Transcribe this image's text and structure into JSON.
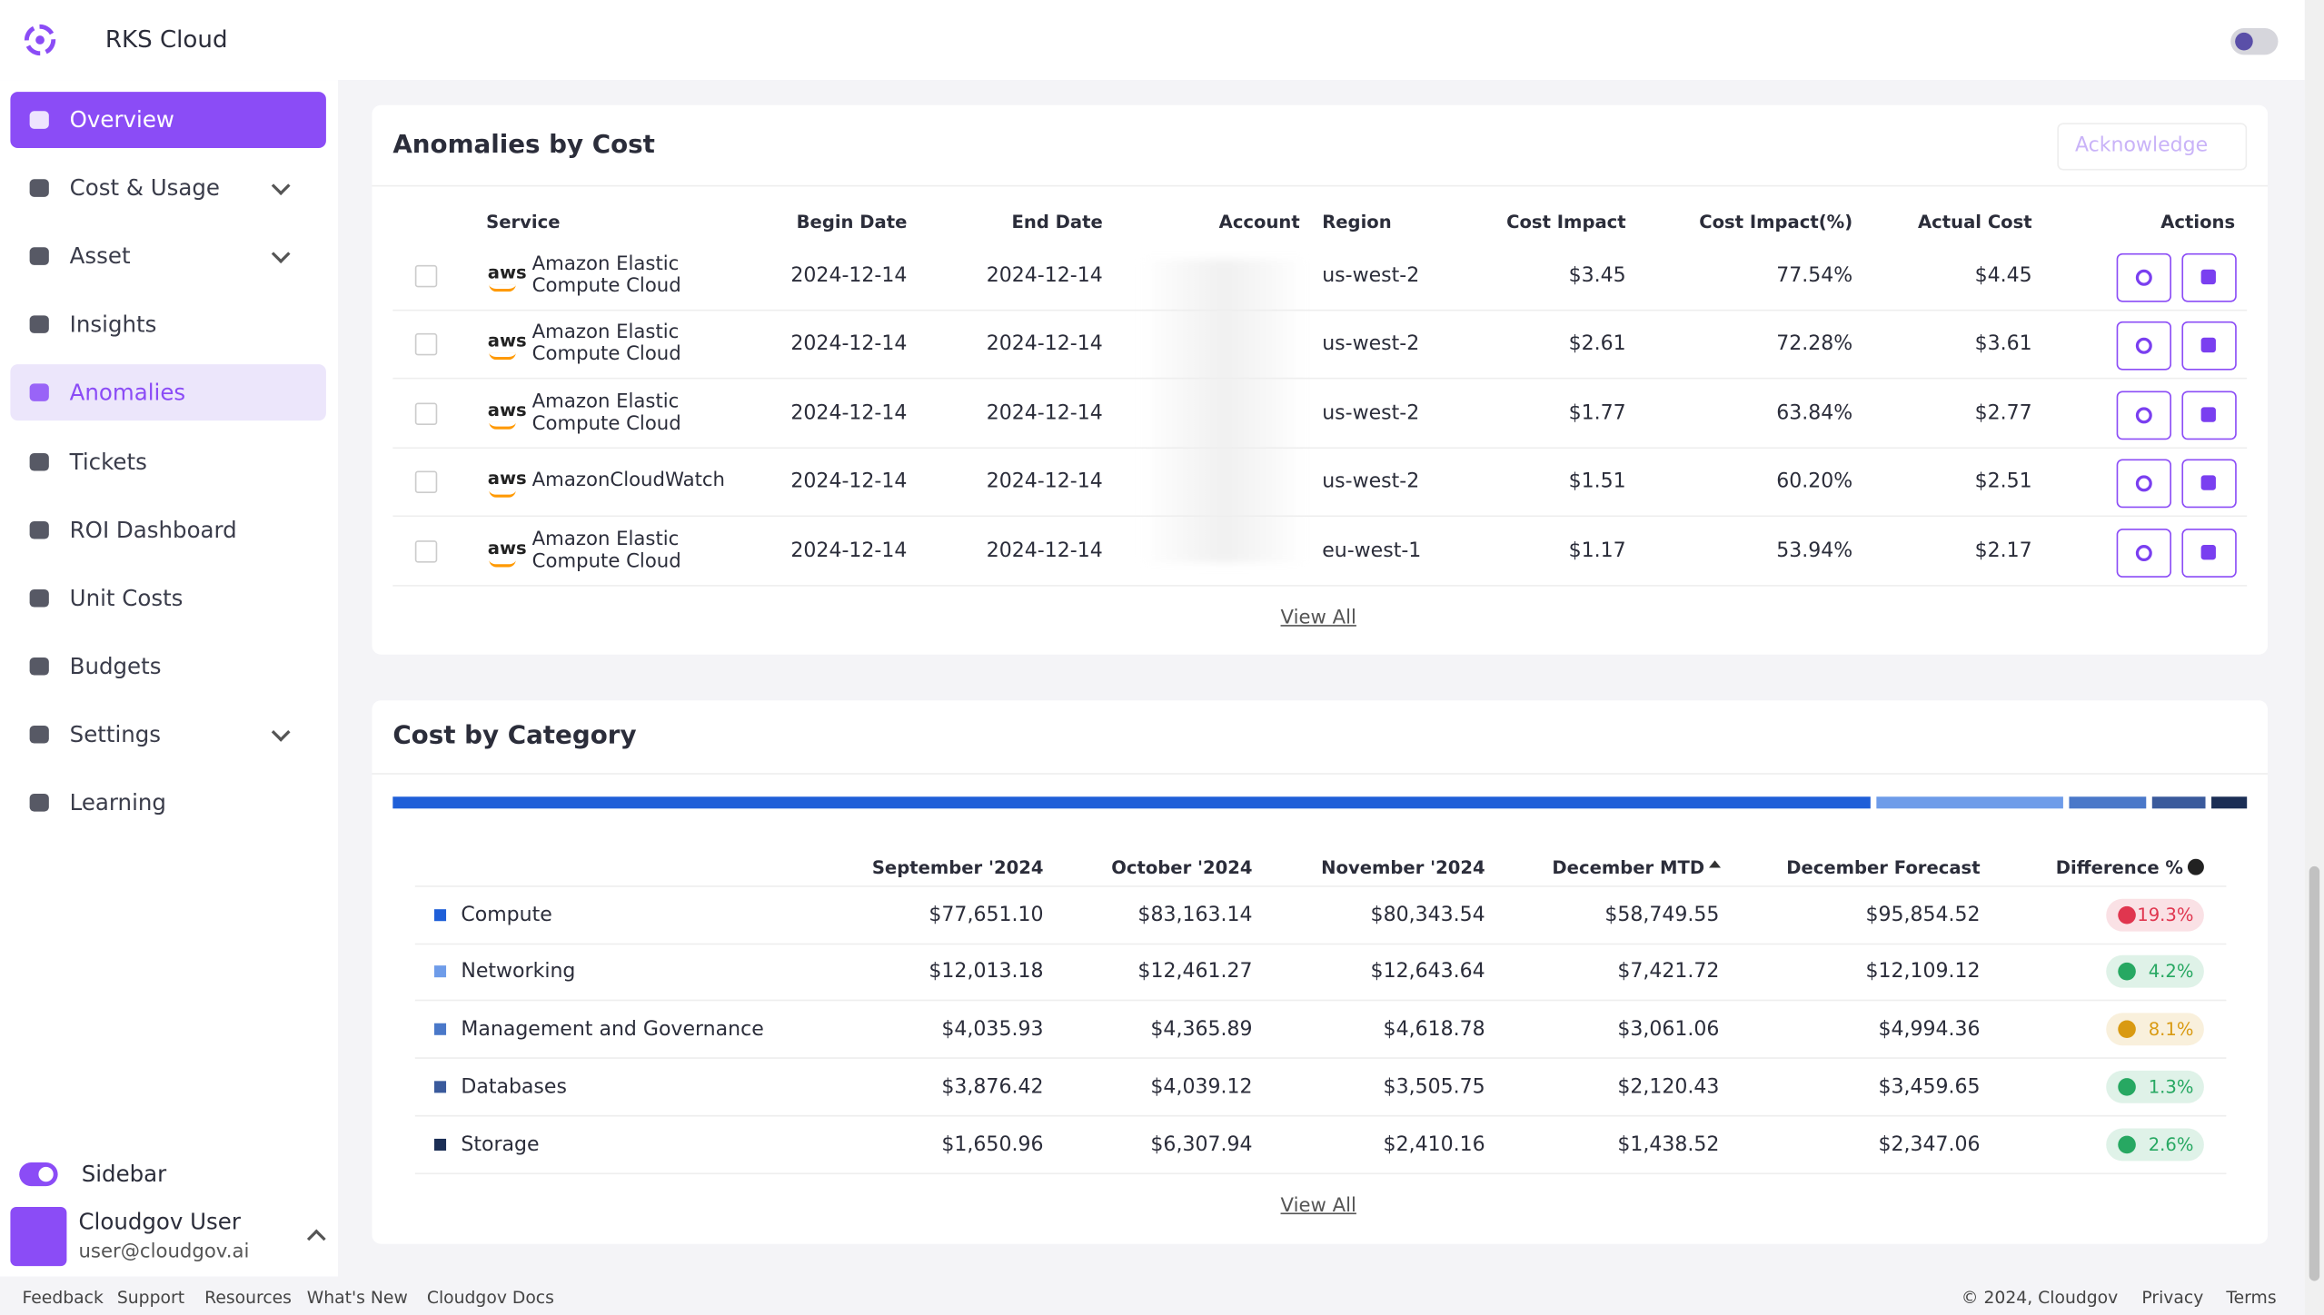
{
  "header": {
    "brand": "RKS Cloud"
  },
  "sidebar": {
    "items": [
      {
        "label": "Overview",
        "active": true
      },
      {
        "label": "Cost & Usage",
        "has_submenu": true
      },
      {
        "label": "Asset",
        "has_submenu": true
      },
      {
        "label": "Insights"
      },
      {
        "label": "Anomalies",
        "highlighted": true
      },
      {
        "label": "Tickets"
      },
      {
        "label": "ROI Dashboard"
      },
      {
        "label": "Unit Costs"
      },
      {
        "label": "Budgets"
      },
      {
        "label": "Settings",
        "has_submenu": true
      },
      {
        "label": "Learning"
      }
    ],
    "toggle_label": "Sidebar",
    "user": {
      "name": "Cloudgov User",
      "email": "user@cloudgov.ai"
    }
  },
  "anomalies": {
    "title": "Anomalies by Cost",
    "button": "Acknowledge",
    "logo_text": "aws",
    "columns": [
      "Service",
      "Begin Date",
      "End Date",
      "Account",
      "Region",
      "Cost Impact",
      "Cost Impact(%)",
      "Actual Cost",
      "Actions"
    ],
    "rows": [
      [
        "Amazon Elastic Compute Cloud",
        "2024-12-14",
        "2024-12-14",
        "us-west-2",
        "$3.45",
        "77.54%",
        "$4.45"
      ],
      [
        "Amazon Elastic Compute Cloud",
        "2024-12-14",
        "2024-12-14",
        "us-west-2",
        "$2.61",
        "72.28%",
        "$3.61"
      ],
      [
        "Amazon Elastic Compute Cloud",
        "2024-12-14",
        "2024-12-14",
        "us-west-2",
        "$1.77",
        "63.84%",
        "$2.77"
      ],
      [
        "AmazonCloudWatch",
        "2024-12-14",
        "2024-12-14",
        "us-west-2",
        "$1.51",
        "60.20%",
        "$2.51"
      ],
      [
        "Amazon Elastic Compute Cloud",
        "2024-12-14",
        "2024-12-14",
        "eu-west-1",
        "$1.17",
        "53.94%",
        "$2.17"
      ]
    ],
    "view_all": "View All"
  },
  "category": {
    "title": "Cost by Category",
    "columns": [
      "September '2024",
      "October '2024",
      "November '2024",
      "December MTD",
      "December Forecast",
      "Difference %"
    ],
    "rows": [
      {
        "name": "Compute",
        "color": "#1f5fd8",
        "values": [
          "$77,651.10",
          "$83,163.14",
          "$80,343.54",
          "$58,749.55",
          "$95,854.52"
        ],
        "difference": "19.3%",
        "badge_color": "#e0364f"
      },
      {
        "name": "Networking",
        "color": "#6e9ce9",
        "values": [
          "$12,013.18",
          "$12,461.27",
          "$12,643.64",
          "$7,421.72",
          "$12,109.12"
        ],
        "difference": "4.2%",
        "badge_color": "#27a862"
      },
      {
        "name": "Management and Governance",
        "color": "#4a78c9",
        "values": [
          "$4,035.93",
          "$4,365.89",
          "$4,618.78",
          "$3,061.06",
          "$4,994.36"
        ],
        "difference": "8.1%",
        "badge_color": "#d99a12"
      },
      {
        "name": "Databases",
        "color": "#3a5a9c",
        "values": [
          "$3,876.42",
          "$4,039.12",
          "$3,505.75",
          "$2,120.43",
          "$3,459.65"
        ],
        "difference": "1.3%",
        "badge_color": "#27a862"
      },
      {
        "name": "Storage",
        "color": "#1b2e55",
        "values": [
          "$1,650.96",
          "$6,307.94",
          "$2,410.16",
          "$1,438.52",
          "$2,347.06"
        ],
        "difference": "2.6%",
        "badge_color": "#27a862"
      }
    ],
    "view_all": "View All"
  },
  "footer": {
    "links": [
      "Feedback",
      "Support",
      "Resources",
      "What's New",
      "Cloudgov Docs"
    ],
    "copyright": "© 2024, Cloudgov",
    "right_links": [
      "Privacy",
      "Terms"
    ]
  }
}
